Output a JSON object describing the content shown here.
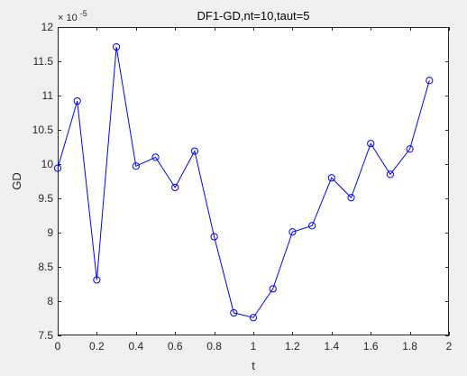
{
  "chart_data": {
    "type": "line",
    "title": "DF1-GD,nt=10,taut=5",
    "xlabel": "t",
    "ylabel": "GD",
    "y_exponent_label": "× 10",
    "y_exponent_power": "-5",
    "xlim": [
      0,
      2
    ],
    "ylim": [
      7.5,
      12
    ],
    "x_ticks": [
      "0",
      "0.2",
      "0.4",
      "0.6",
      "0.8",
      "1",
      "1.2",
      "1.4",
      "1.6",
      "1.8",
      "2"
    ],
    "y_ticks": [
      "7.5",
      "8",
      "8.5",
      "9",
      "9.5",
      "10",
      "10.5",
      "11",
      "11.5",
      "12"
    ],
    "grid": false,
    "line_color": "#0000ff",
    "marker": "circle",
    "series": [
      {
        "x": [
          0,
          0.1,
          0.2,
          0.3,
          0.4,
          0.5,
          0.6,
          0.7,
          0.8,
          0.9,
          1.0,
          1.1,
          1.2,
          1.3,
          1.4,
          1.5,
          1.6,
          1.7,
          1.8,
          1.9
        ],
        "values": [
          9.94,
          10.92,
          8.31,
          11.71,
          9.97,
          10.1,
          9.66,
          10.19,
          8.94,
          7.83,
          7.76,
          8.18,
          9.01,
          9.1,
          9.8,
          9.51,
          10.3,
          9.85,
          10.22,
          11.22
        ]
      }
    ]
  }
}
